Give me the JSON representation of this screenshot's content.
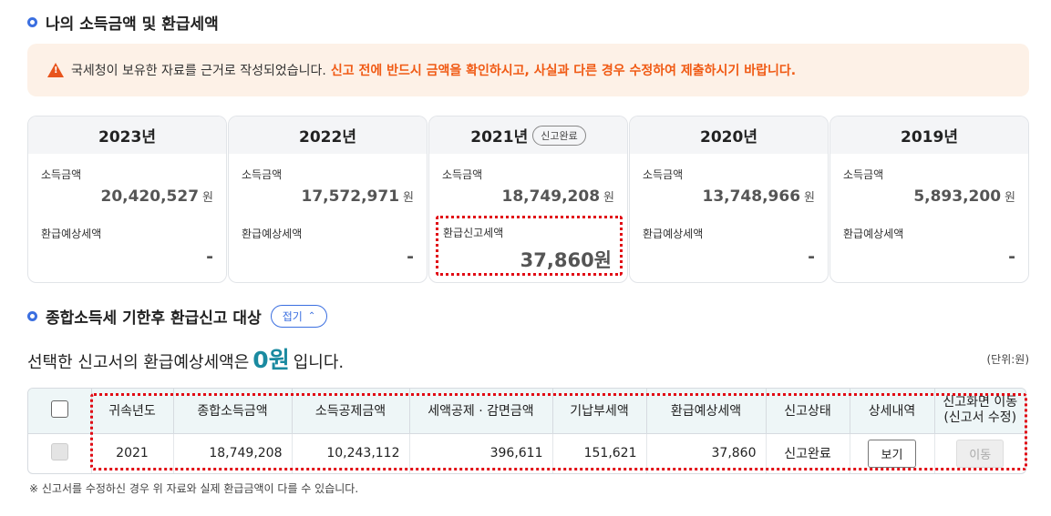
{
  "section1": {
    "title": "나의 소득금액 및 환급세액"
  },
  "notice": {
    "normal": "국세청이 보유한 자료를 근거로 작성되었습니다.",
    "highlight": "신고 전에 반드시 금액을 확인하시고, 사실과 다른 경우 수정하여 제출하시기 바랍니다."
  },
  "years": [
    {
      "year": "2023년",
      "income_label": "소득금액",
      "income": "20,420,527",
      "won": "원",
      "refund_label": "환급예상세액",
      "refund": "-"
    },
    {
      "year": "2022년",
      "income_label": "소득금액",
      "income": "17,572,971",
      "won": "원",
      "refund_label": "환급예상세액",
      "refund": "-"
    },
    {
      "year": "2021년",
      "badge": "신고완료",
      "income_label": "소득금액",
      "income": "18,749,208",
      "won": "원",
      "refund_label": "환급신고세액",
      "refund": "37,860원"
    },
    {
      "year": "2020년",
      "income_label": "소득금액",
      "income": "13,748,966",
      "won": "원",
      "refund_label": "환급예상세액",
      "refund": "-"
    },
    {
      "year": "2019년",
      "income_label": "소득금액",
      "income": "5,893,200",
      "won": "원",
      "refund_label": "환급예상세액",
      "refund": "-"
    }
  ],
  "section2": {
    "title": "종합소득세 기한후 환급신고 대상",
    "fold_label": "접기"
  },
  "summary": {
    "prefix": "선택한 신고서의 환급예상세액은",
    "amount": "0원",
    "suffix": "입니다."
  },
  "unit": "(단위:원)",
  "table": {
    "headers": [
      "귀속년도",
      "종합소득금액",
      "소득공제금액",
      "세액공제 · 감면금액",
      "기납부세액",
      "환급예상세액",
      "신고상태",
      "상세내역",
      "신고화면 이동\n(신고서 수정)"
    ],
    "row": {
      "year": "2021",
      "total_income": "18,749,208",
      "deduction": "10,243,112",
      "tax_credit": "396,611",
      "prepaid": "151,621",
      "refund": "37,860",
      "status": "신고완료",
      "view_label": "보기",
      "move_label": "이동"
    }
  },
  "footnote": "※ 신고서를 수정하신 경우 위 자료와 실제 환급금액이 다를 수 있습니다."
}
